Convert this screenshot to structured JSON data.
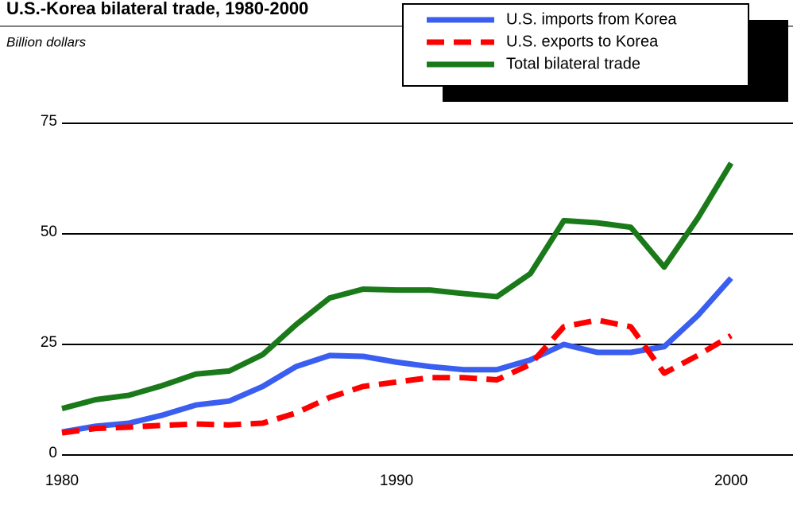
{
  "chart_data": {
    "type": "line",
    "title": "U.S.-Korea bilateral trade, 1980-2000",
    "y_label": "Billion dollars",
    "x": [
      1980,
      1981,
      1982,
      1983,
      1984,
      1985,
      1986,
      1987,
      1988,
      1989,
      1990,
      1991,
      1992,
      1993,
      1994,
      1995,
      1996,
      1997,
      1998,
      1999,
      2000
    ],
    "series": [
      {
        "name": "U.S. imports from Korea",
        "color": "#3a5ef0",
        "dash": false,
        "values": [
          5.2,
          6.5,
          7.2,
          9,
          11.3,
          12.2,
          15.5,
          20,
          22.5,
          22.3,
          21,
          20,
          19.3,
          19.3,
          21.5,
          25,
          23.2,
          23.2,
          24.5,
          31.5,
          40
        ]
      },
      {
        "name": "U.S. exports to Korea",
        "color": "#ff0000",
        "dash": true,
        "values": [
          5,
          6,
          6.3,
          6.7,
          7,
          6.8,
          7.2,
          9.5,
          13,
          15.5,
          16.5,
          17.5,
          17.5,
          17,
          20.5,
          29,
          30.5,
          29,
          18.5,
          22.5,
          27
        ]
      },
      {
        "name": "Total bilateral trade",
        "color": "#1a7a1a",
        "dash": false,
        "values": [
          10.5,
          12.5,
          13.5,
          15.7,
          18.3,
          19,
          22.7,
          29.5,
          35.5,
          37.5,
          37.3,
          37.3,
          36.5,
          35.8,
          41,
          53,
          52.5,
          51.5,
          42.5,
          53.5,
          66
        ]
      }
    ],
    "xlim": [
      1980,
      2001.85
    ],
    "xticks": [
      1980,
      1990,
      2000
    ],
    "ylim": [
      0,
      75
    ],
    "yticks": [
      0,
      25,
      50,
      75
    ],
    "grid": true,
    "legend": "top-right"
  }
}
